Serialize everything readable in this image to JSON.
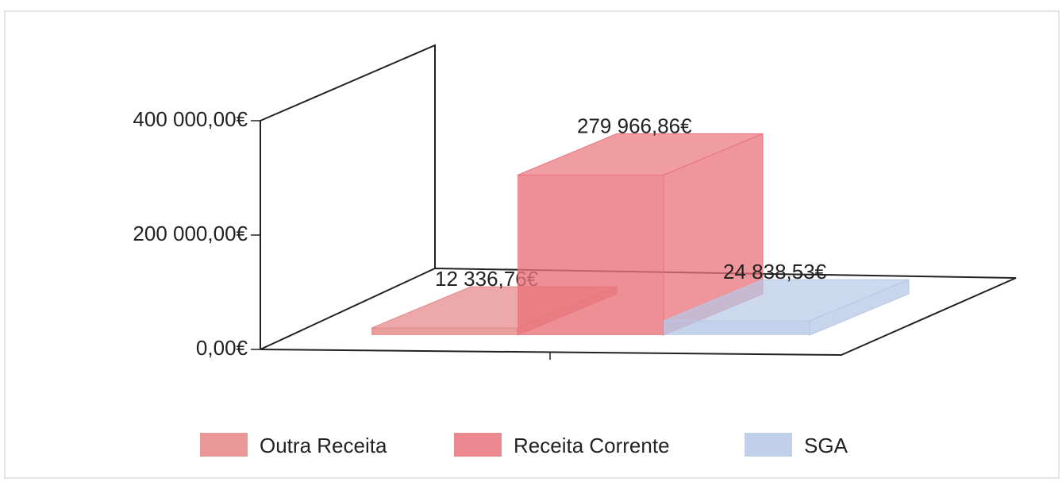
{
  "chart_data": {
    "type": "bar3d",
    "categories": [
      null
    ],
    "series": [
      {
        "name": "Outra Receita",
        "color": "#e58585",
        "values": [
          12336.76
        ],
        "value_labels": [
          "12 336,76€"
        ]
      },
      {
        "name": "Receita Corrente",
        "color": "#e9737b",
        "values": [
          279966.86
        ],
        "value_labels": [
          "279 966,86€"
        ]
      },
      {
        "name": "SGA",
        "color": "#b7c7e6",
        "values": [
          24838.53
        ],
        "value_labels": [
          "24 838,53€"
        ]
      }
    ],
    "ylim": [
      0,
      400000
    ],
    "yticks": [
      {
        "value": 0,
        "label": "0,00€"
      },
      {
        "value": 200000,
        "label": "200 000,00€"
      },
      {
        "value": 400000,
        "label": "400 000,00€"
      }
    ],
    "legend": "bottom"
  }
}
